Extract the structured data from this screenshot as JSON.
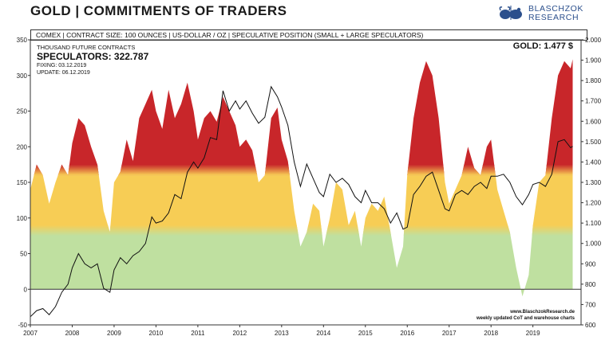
{
  "header": {
    "title": "GOLD | COMMITMENTS OF TRADERS",
    "logo_text_line1": "BLASCHZOK",
    "logo_text_line2": "RESEARCH",
    "subtitle": "COMEX  |  CONTRACT SIZE: 100 OUNCES  |  US-DOLLAR / OZ  |  SPECULATIVE  POSITION (SMALL + LARGE SPECULATORS)"
  },
  "info": {
    "unit_label": "THOUSAND FUTURE CONTRACTS",
    "speculators_label": "SPECULATORS: 322.787",
    "fixing_label": "FIXING: 03.12.2019",
    "update_label": "UPDATE: 06.12.2019",
    "gold_label": "GOLD: 1.477 $"
  },
  "credits": {
    "line1": "www.BlaschzokResearch.de",
    "line2": "weekly updated CoT and warehouse charts"
  },
  "colors": {
    "red": "#c8262a",
    "yellow": "#f7cd55",
    "green": "#bfe0a0",
    "line": "#111111",
    "logo": "#2b4f8c"
  },
  "chart_data": {
    "type": "area",
    "title": "GOLD | COMMITMENTS OF TRADERS",
    "ylabel_left": "THOUSAND FUTURE CONTRACTS",
    "ylabel_right": "US-DOLLAR / OZ",
    "left_axis": {
      "ylim": [
        -50,
        350
      ],
      "ticks": [
        "-50",
        "0",
        "50",
        "100",
        "150",
        "200",
        "250",
        "300",
        "350"
      ]
    },
    "right_axis": {
      "ylim": [
        600,
        2000
      ],
      "ticks": [
        "600",
        "700",
        "800",
        "900",
        "1.000",
        "1.100",
        "1.200",
        "1.300",
        "1.400",
        "1.500",
        "1.600",
        "1.700",
        "1.800",
        "1.900",
        "2.000"
      ]
    },
    "x_axis": {
      "range": [
        2007.0,
        2020.15
      ],
      "tick_labels": [
        "2007",
        "2008",
        "2009",
        "2010",
        "2011",
        "2012",
        "2013",
        "2014",
        "2015",
        "2016",
        "2017",
        "2018",
        "2019"
      ]
    },
    "series": [
      {
        "name": "Speculators net position (thousand contracts)",
        "axis": "left",
        "style": "area",
        "x": [
          2007.0,
          2007.15,
          2007.3,
          2007.45,
          2007.6,
          2007.75,
          2007.9,
          2008.0,
          2008.15,
          2008.3,
          2008.45,
          2008.6,
          2008.75,
          2008.9,
          2009.0,
          2009.15,
          2009.3,
          2009.45,
          2009.6,
          2009.75,
          2009.9,
          2010.0,
          2010.15,
          2010.3,
          2010.45,
          2010.6,
          2010.75,
          2010.9,
          2011.0,
          2011.15,
          2011.3,
          2011.45,
          2011.6,
          2011.75,
          2011.9,
          2012.0,
          2012.15,
          2012.3,
          2012.45,
          2012.6,
          2012.75,
          2012.9,
          2013.0,
          2013.15,
          2013.3,
          2013.45,
          2013.6,
          2013.75,
          2013.9,
          2014.0,
          2014.15,
          2014.3,
          2014.45,
          2014.6,
          2014.75,
          2014.9,
          2015.0,
          2015.15,
          2015.3,
          2015.45,
          2015.6,
          2015.75,
          2015.9,
          2016.0,
          2016.15,
          2016.3,
          2016.45,
          2016.6,
          2016.75,
          2016.9,
          2017.0,
          2017.15,
          2017.3,
          2017.45,
          2017.6,
          2017.75,
          2017.9,
          2018.0,
          2018.15,
          2018.3,
          2018.45,
          2018.6,
          2018.75,
          2018.9,
          2019.0,
          2019.15,
          2019.3,
          2019.45,
          2019.6,
          2019.75,
          2019.9,
          2019.95
        ],
        "values": [
          140,
          175,
          160,
          120,
          150,
          175,
          160,
          205,
          240,
          230,
          200,
          175,
          110,
          80,
          150,
          165,
          210,
          180,
          240,
          260,
          280,
          250,
          225,
          280,
          240,
          260,
          290,
          250,
          210,
          240,
          250,
          235,
          270,
          250,
          230,
          200,
          210,
          195,
          150,
          160,
          240,
          255,
          210,
          180,
          110,
          60,
          80,
          120,
          110,
          60,
          100,
          150,
          140,
          90,
          110,
          60,
          100,
          120,
          110,
          130,
          80,
          30,
          60,
          160,
          240,
          290,
          320,
          300,
          240,
          150,
          120,
          140,
          160,
          200,
          170,
          160,
          200,
          210,
          140,
          110,
          80,
          30,
          -10,
          20,
          90,
          150,
          160,
          240,
          300,
          320,
          310,
          322.787
        ]
      },
      {
        "name": "Gold price (USD/oz)",
        "axis": "right",
        "style": "line",
        "x": [
          2007.0,
          2007.15,
          2007.3,
          2007.45,
          2007.6,
          2007.75,
          2007.9,
          2008.0,
          2008.15,
          2008.3,
          2008.45,
          2008.6,
          2008.75,
          2008.9,
          2009.0,
          2009.15,
          2009.3,
          2009.45,
          2009.6,
          2009.75,
          2009.9,
          2010.0,
          2010.15,
          2010.3,
          2010.45,
          2010.6,
          2010.75,
          2010.9,
          2011.0,
          2011.15,
          2011.3,
          2011.45,
          2011.6,
          2011.75,
          2011.9,
          2012.0,
          2012.15,
          2012.3,
          2012.45,
          2012.6,
          2012.75,
          2012.9,
          2013.0,
          2013.15,
          2013.3,
          2013.45,
          2013.6,
          2013.75,
          2013.9,
          2014.0,
          2014.15,
          2014.3,
          2014.45,
          2014.6,
          2014.75,
          2014.9,
          2015.0,
          2015.15,
          2015.3,
          2015.45,
          2015.6,
          2015.75,
          2015.9,
          2016.0,
          2016.15,
          2016.3,
          2016.45,
          2016.6,
          2016.75,
          2016.9,
          2017.0,
          2017.15,
          2017.3,
          2017.45,
          2017.6,
          2017.75,
          2017.9,
          2018.0,
          2018.15,
          2018.3,
          2018.45,
          2018.6,
          2018.75,
          2018.9,
          2019.0,
          2019.15,
          2019.3,
          2019.45,
          2019.6,
          2019.75,
          2019.9,
          2019.95
        ],
        "values": [
          640,
          670,
          680,
          650,
          690,
          760,
          800,
          880,
          950,
          900,
          880,
          900,
          780,
          760,
          870,
          930,
          900,
          940,
          960,
          1000,
          1130,
          1100,
          1110,
          1150,
          1240,
          1220,
          1350,
          1400,
          1370,
          1420,
          1520,
          1510,
          1750,
          1650,
          1700,
          1660,
          1700,
          1640,
          1590,
          1620,
          1770,
          1720,
          1670,
          1580,
          1400,
          1280,
          1390,
          1320,
          1250,
          1230,
          1340,
          1300,
          1320,
          1290,
          1230,
          1200,
          1260,
          1200,
          1200,
          1170,
          1100,
          1150,
          1070,
          1080,
          1240,
          1280,
          1330,
          1350,
          1260,
          1170,
          1160,
          1240,
          1260,
          1240,
          1280,
          1300,
          1270,
          1330,
          1330,
          1340,
          1300,
          1230,
          1190,
          1240,
          1290,
          1300,
          1280,
          1340,
          1500,
          1510,
          1470,
          1477
        ]
      }
    ],
    "color_bands": [
      {
        "from": -50,
        "to": 80,
        "color": "green"
      },
      {
        "from": 80,
        "to": 160,
        "color": "yellow"
      },
      {
        "from": 160,
        "to": 350,
        "color": "red"
      }
    ]
  }
}
